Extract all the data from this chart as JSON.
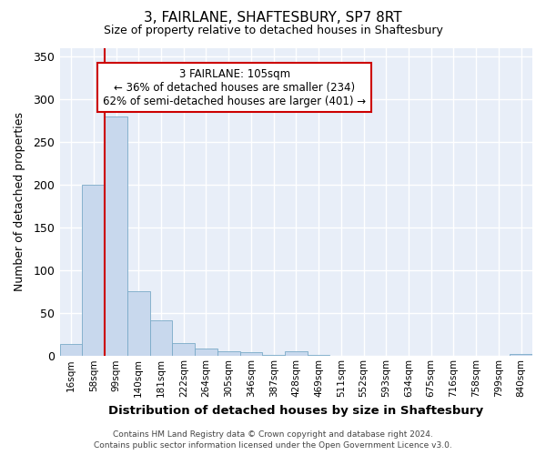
{
  "title": "3, FAIRLANE, SHAFTESBURY, SP7 8RT",
  "subtitle": "Size of property relative to detached houses in Shaftesbury",
  "xlabel": "Distribution of detached houses by size in Shaftesbury",
  "ylabel": "Number of detached properties",
  "bar_color": "#c8d8ed",
  "bar_edge_color": "#7aaac8",
  "background_color": "#e8eef8",
  "grid_color": "#ffffff",
  "bins": [
    "16sqm",
    "58sqm",
    "99sqm",
    "140sqm",
    "181sqm",
    "222sqm",
    "264sqm",
    "305sqm",
    "346sqm",
    "387sqm",
    "428sqm",
    "469sqm",
    "511sqm",
    "552sqm",
    "593sqm",
    "634sqm",
    "675sqm",
    "716sqm",
    "758sqm",
    "799sqm",
    "840sqm"
  ],
  "values": [
    14,
    200,
    280,
    76,
    42,
    15,
    9,
    6,
    4,
    1,
    6,
    1,
    0,
    0,
    0,
    0,
    0,
    0,
    0,
    0,
    2
  ],
  "ylim": [
    0,
    360
  ],
  "yticks": [
    0,
    50,
    100,
    150,
    200,
    250,
    300,
    350
  ],
  "vline_color": "#cc0000",
  "vline_bin_index": 2,
  "annotation_line1": "3 FAIRLANE: 105sqm",
  "annotation_line2": "← 36% of detached houses are smaller (234)",
  "annotation_line3": "62% of semi-detached houses are larger (401) →",
  "footer_text": "Contains HM Land Registry data © Crown copyright and database right 2024.\nContains public sector information licensed under the Open Government Licence v3.0.",
  "figsize": [
    6.0,
    5.0
  ],
  "dpi": 100
}
